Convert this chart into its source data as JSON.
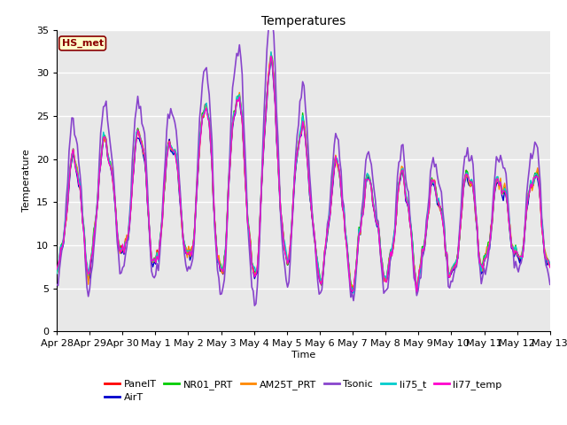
{
  "title": "Temperatures",
  "xlabel": "Time",
  "ylabel": "Temperature",
  "ylim": [
    0,
    35
  ],
  "yticks": [
    0,
    5,
    10,
    15,
    20,
    25,
    30,
    35
  ],
  "background_color": "#ffffff",
  "plot_bg_color": "#e8e8e8",
  "grid_color": "#ffffff",
  "annotation_text": "HS_met",
  "annotation_bg": "#ffffcc",
  "annotation_border": "#8b0000",
  "annotation_text_color": "#8b0000",
  "series_order": [
    "PanelT",
    "AirT",
    "NR01_PRT",
    "AM25T_PRT",
    "Tsonic",
    "li75_t",
    "li77_temp"
  ],
  "series": {
    "PanelT": {
      "color": "#ff0000",
      "lw": 1.0
    },
    "AirT": {
      "color": "#0000cc",
      "lw": 1.0
    },
    "NR01_PRT": {
      "color": "#00cc00",
      "lw": 1.0
    },
    "AM25T_PRT": {
      "color": "#ff8800",
      "lw": 1.0
    },
    "Tsonic": {
      "color": "#8844cc",
      "lw": 1.2
    },
    "li75_t": {
      "color": "#00cccc",
      "lw": 1.0
    },
    "li77_temp": {
      "color": "#ff00cc",
      "lw": 1.0
    }
  },
  "xtick_labels": [
    "Apr 28",
    "Apr 29",
    "Apr 30",
    "May 1",
    "May 2",
    "May 3",
    "May 4",
    "May 5",
    "May 6",
    "May 7",
    "May 8",
    "May 9",
    "May 10",
    "May 11",
    "May 12",
    "May 13"
  ],
  "figsize": [
    6.4,
    4.8
  ],
  "dpi": 100
}
